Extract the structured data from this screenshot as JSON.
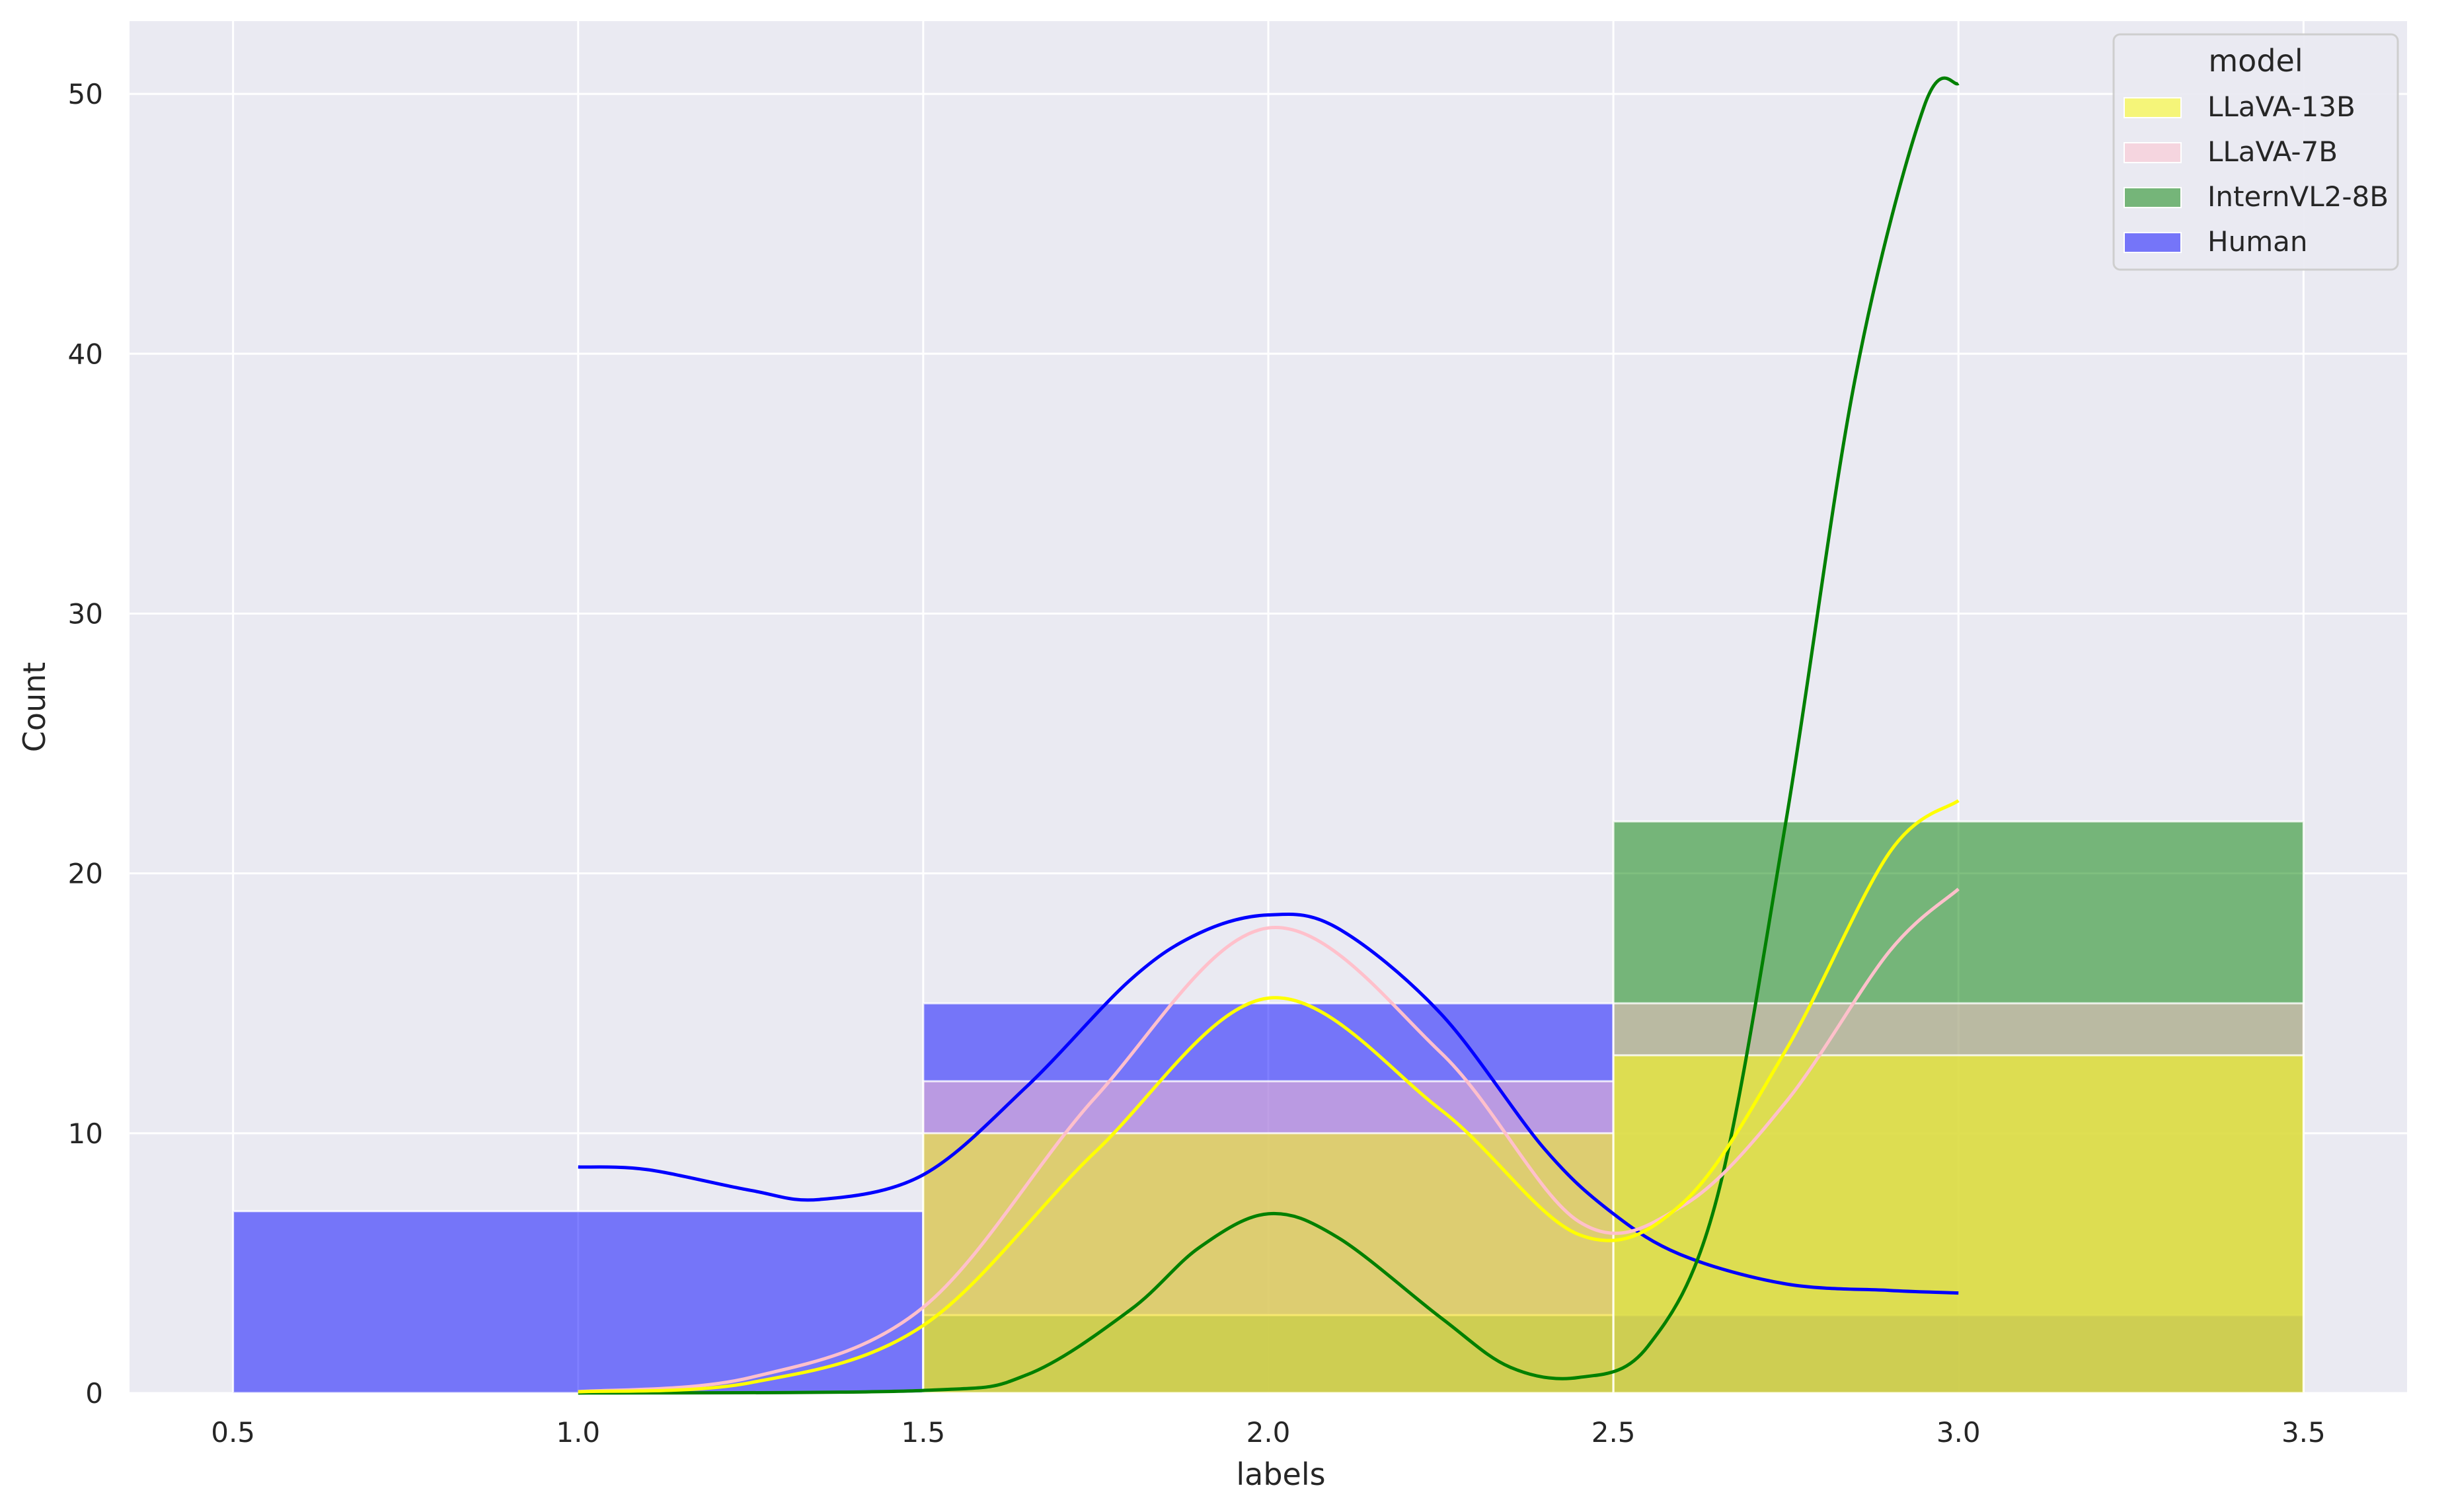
{
  "chart_data": {
    "type": "histogram",
    "xlabel": "labels",
    "ylabel": "Count",
    "xlim": [
      0.35,
      3.65
    ],
    "ylim": [
      0,
      52.8
    ],
    "x_ticks": [
      "0.5",
      "1.0",
      "1.5",
      "2.0",
      "2.5",
      "3.0",
      "3.5"
    ],
    "y_ticks": [
      "0",
      "10",
      "20",
      "30",
      "40",
      "50"
    ],
    "x_tick_values": [
      0.5,
      1.0,
      1.5,
      2.0,
      2.5,
      3.0,
      3.5
    ],
    "y_tick_values": [
      0,
      10,
      20,
      30,
      40,
      50
    ],
    "grid": true,
    "legend": {
      "title": "model",
      "position": "top-right"
    },
    "series": [
      {
        "name": "LLaVA-13B",
        "color": "#ffff00",
        "bins": [
          {
            "x0": 1.5,
            "x1": 2.5,
            "count": 10
          },
          {
            "x0": 2.5,
            "x1": 3.5,
            "count": 13
          }
        ],
        "kde": [
          [
            1.0,
            0.05
          ],
          [
            1.25,
            0.4
          ],
          [
            1.5,
            2.6
          ],
          [
            1.75,
            9.3
          ],
          [
            2.0,
            15.2
          ],
          [
            2.25,
            10.9
          ],
          [
            2.45,
            6.1
          ],
          [
            2.6,
            7.3
          ],
          [
            2.75,
            13.2
          ],
          [
            2.9,
            20.8
          ],
          [
            3.0,
            22.8
          ]
        ]
      },
      {
        "name": "LLaVA-7B",
        "color": "#ffc0cb",
        "bins": [
          {
            "x0": 1.5,
            "x1": 2.5,
            "count": 12
          },
          {
            "x0": 2.5,
            "x1": 3.5,
            "count": 15
          }
        ],
        "kde": [
          [
            1.0,
            0.05
          ],
          [
            1.25,
            0.6
          ],
          [
            1.5,
            3.3
          ],
          [
            1.75,
            11.4
          ],
          [
            2.0,
            17.9
          ],
          [
            2.25,
            13.1
          ],
          [
            2.45,
            6.6
          ],
          [
            2.6,
            7.2
          ],
          [
            2.75,
            11.2
          ],
          [
            2.9,
            17.0
          ],
          [
            3.0,
            19.4
          ]
        ]
      },
      {
        "name": "InternVL2-8B",
        "color": "#008000",
        "bins": [
          {
            "x0": 1.5,
            "x1": 2.5,
            "count": 3
          },
          {
            "x0": 2.5,
            "x1": 3.5,
            "count": 22
          }
        ],
        "kde": [
          [
            1.0,
            0.0
          ],
          [
            1.5,
            0.1
          ],
          [
            1.65,
            0.7
          ],
          [
            1.8,
            3.2
          ],
          [
            1.9,
            5.6
          ],
          [
            2.0,
            6.9
          ],
          [
            2.1,
            6.0
          ],
          [
            2.25,
            2.9
          ],
          [
            2.35,
            1.0
          ],
          [
            2.45,
            0.6
          ],
          [
            2.55,
            1.8
          ],
          [
            2.65,
            7.5
          ],
          [
            2.75,
            22.0
          ],
          [
            2.85,
            39.0
          ],
          [
            2.95,
            49.5
          ],
          [
            3.0,
            50.4
          ]
        ]
      },
      {
        "name": "Human",
        "color": "#0000ff",
        "bins": [
          {
            "x0": 0.5,
            "x1": 1.5,
            "count": 7
          },
          {
            "x0": 1.5,
            "x1": 2.5,
            "count": 15
          },
          {
            "x0": 2.5,
            "x1": 3.5,
            "count": 3
          }
        ],
        "kde": [
          [
            1.0,
            8.7
          ],
          [
            1.1,
            8.6
          ],
          [
            1.25,
            7.8
          ],
          [
            1.35,
            7.45
          ],
          [
            1.5,
            8.4
          ],
          [
            1.65,
            11.8
          ],
          [
            1.8,
            15.9
          ],
          [
            1.9,
            17.7
          ],
          [
            2.0,
            18.4
          ],
          [
            2.1,
            17.9
          ],
          [
            2.25,
            14.6
          ],
          [
            2.4,
            9.4
          ],
          [
            2.5,
            6.9
          ],
          [
            2.6,
            5.3
          ],
          [
            2.75,
            4.2
          ],
          [
            2.9,
            3.95
          ],
          [
            3.0,
            3.85
          ]
        ]
      }
    ]
  }
}
